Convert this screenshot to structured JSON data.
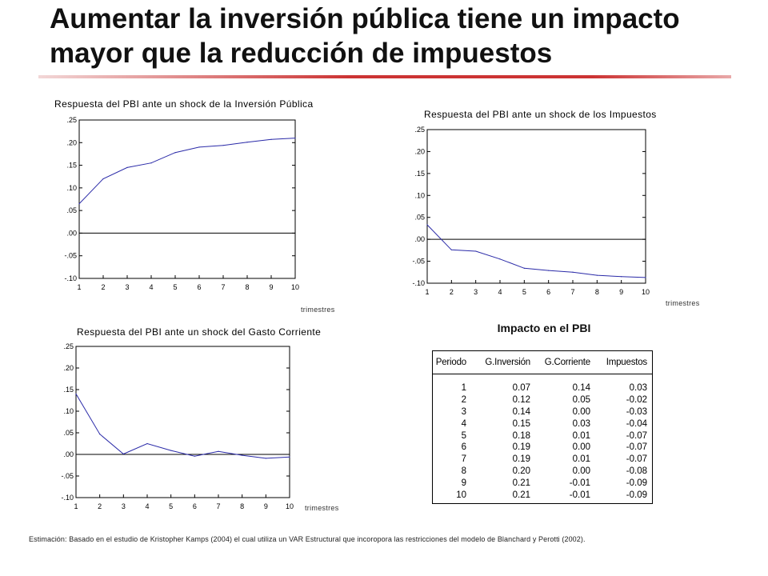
{
  "slide": {
    "title": "Aumentar la inversión pública tiene un impacto mayor que la reducción de impuestos",
    "accent_color": "#cc3333",
    "footnote": "Estimación: Basado en el estudio de Kristopher Kamps (2004) el cual utiliza un VAR Estructural que incoropora las  restricciones del modelo de Blanchard y Perotti (2002)."
  },
  "chart_data": [
    {
      "type": "line",
      "title": "Respuesta del PBI ante un shock de la Inversión Pública",
      "xlabel": "trimestres",
      "ylabel": "",
      "x": [
        1,
        2,
        3,
        4,
        5,
        6,
        7,
        8,
        9,
        10
      ],
      "xticks": [
        "1",
        "2",
        "3",
        "4",
        "5",
        "6",
        "7",
        "8",
        "9",
        "10"
      ],
      "yticks": [
        ".25",
        ".20",
        ".15",
        ".10",
        ".05",
        ".00",
        "-.05",
        "-.10"
      ],
      "ylim": [
        -0.1,
        0.25
      ],
      "zero_line": true,
      "series": [
        {
          "values": [
            0.065,
            0.12,
            0.145,
            0.155,
            0.178,
            0.19,
            0.194,
            0.201,
            0.207,
            0.21
          ],
          "color": "#2a2aa8"
        }
      ]
    },
    {
      "type": "line",
      "title": "Respuesta del PBI ante un shock de los Impuestos",
      "xlabel": "trimestres",
      "ylabel": "",
      "x": [
        1,
        2,
        3,
        4,
        5,
        6,
        7,
        8,
        9,
        10
      ],
      "xticks": [
        "1",
        "2",
        "3",
        "4",
        "5",
        "6",
        "7",
        "8",
        "9",
        "10"
      ],
      "yticks": [
        ".25",
        ".20",
        ".15",
        ".10",
        ".05",
        ".00",
        "-.05",
        "-.10"
      ],
      "ylim": [
        -0.1,
        0.25
      ],
      "zero_line": true,
      "series": [
        {
          "values": [
            0.033,
            -0.024,
            -0.027,
            -0.045,
            -0.066,
            -0.071,
            -0.075,
            -0.082,
            -0.085,
            -0.087
          ],
          "color": "#2a2aa8"
        }
      ]
    },
    {
      "type": "line",
      "title": "Respuesta del PBI ante un shock del Gasto Corriente",
      "xlabel": "trimestres",
      "ylabel": "",
      "x": [
        1,
        2,
        3,
        4,
        5,
        6,
        7,
        8,
        9,
        10
      ],
      "xticks": [
        "1",
        "2",
        "3",
        "4",
        "5",
        "6",
        "7",
        "8",
        "9",
        "10"
      ],
      "yticks": [
        ".25",
        ".20",
        ".15",
        ".10",
        ".05",
        ".00",
        "-.05",
        "-.10"
      ],
      "ylim": [
        -0.1,
        0.25
      ],
      "zero_line": true,
      "series": [
        {
          "values": [
            0.14,
            0.047,
            0.001,
            0.025,
            0.009,
            -0.004,
            0.007,
            -0.002,
            -0.009,
            -0.006
          ],
          "color": "#2a2aa8"
        }
      ]
    },
    {
      "type": "table",
      "title": "Impacto en el  PBI",
      "columns": [
        "Periodo",
        "G.Inversión",
        "G.Corriente",
        "Impuestos"
      ],
      "rows": [
        [
          "1",
          "0.07",
          "0.14",
          "0.03"
        ],
        [
          "2",
          "0.12",
          "0.05",
          "-0.02"
        ],
        [
          "3",
          "0.14",
          "0.00",
          "-0.03"
        ],
        [
          "4",
          "0.15",
          "0.03",
          "-0.04"
        ],
        [
          "5",
          "0.18",
          "0.01",
          "-0.07"
        ],
        [
          "6",
          "0.19",
          "0.00",
          "-0.07"
        ],
        [
          "7",
          "0.19",
          "0.01",
          "-0.07"
        ],
        [
          "8",
          "0.20",
          "0.00",
          "-0.08"
        ],
        [
          "9",
          "0.21",
          "-0.01",
          "-0.09"
        ],
        [
          "10",
          "0.21",
          "-0.01",
          "-0.09"
        ]
      ]
    }
  ]
}
